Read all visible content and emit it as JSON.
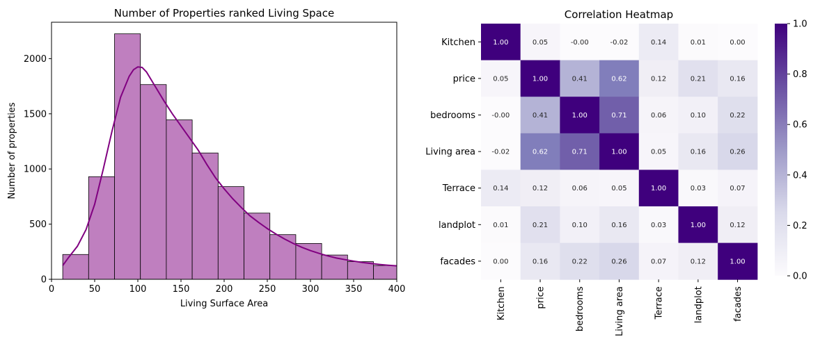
{
  "chart_data": [
    {
      "type": "histogram",
      "title": "Number of Properties ranked Living Space",
      "xlabel": "Living Surface Area",
      "ylabel": "Number of properties",
      "xlim": [
        0,
        400
      ],
      "ylim": [
        0,
        2330
      ],
      "xticks": [
        0,
        50,
        100,
        150,
        200,
        250,
        300,
        350,
        400
      ],
      "yticks": [
        0,
        500,
        1000,
        1500,
        2000
      ],
      "bar_color": "#bf7fbf",
      "edge_color": "#000000",
      "bins": [
        {
          "x0": 13,
          "x1": 43,
          "value": 225
        },
        {
          "x0": 43,
          "x1": 73,
          "value": 930
        },
        {
          "x0": 73,
          "x1": 103,
          "value": 2225
        },
        {
          "x0": 103,
          "x1": 133,
          "value": 1765
        },
        {
          "x0": 133,
          "x1": 163,
          "value": 1445
        },
        {
          "x0": 163,
          "x1": 193,
          "value": 1145
        },
        {
          "x0": 193,
          "x1": 223,
          "value": 840
        },
        {
          "x0": 223,
          "x1": 253,
          "value": 600
        },
        {
          "x0": 253,
          "x1": 283,
          "value": 405
        },
        {
          "x0": 283,
          "x1": 313,
          "value": 325
        },
        {
          "x0": 313,
          "x1": 343,
          "value": 220
        },
        {
          "x0": 343,
          "x1": 373,
          "value": 160
        },
        {
          "x0": 373,
          "x1": 403,
          "value": 125
        }
      ],
      "kde": {
        "color": "#800080",
        "x": [
          13,
          20,
          30,
          40,
          50,
          60,
          70,
          80,
          90,
          95,
          100,
          105,
          110,
          120,
          130,
          140,
          150,
          160,
          170,
          180,
          190,
          200,
          210,
          220,
          230,
          240,
          250,
          260,
          270,
          280,
          290,
          300,
          310,
          320,
          330,
          340,
          350,
          360,
          370,
          380,
          390,
          400
        ],
        "y": [
          125,
          200,
          300,
          450,
          680,
          1000,
          1340,
          1650,
          1840,
          1900,
          1925,
          1920,
          1880,
          1750,
          1620,
          1500,
          1390,
          1280,
          1170,
          1040,
          920,
          820,
          730,
          650,
          575,
          515,
          460,
          410,
          365,
          325,
          290,
          260,
          235,
          212,
          193,
          178,
          165,
          153,
          143,
          135,
          128,
          122
        ]
      }
    },
    {
      "type": "heatmap",
      "title": "Correlation Heatmap",
      "row_labels": [
        "Kitchen",
        "price",
        "bedrooms",
        "Living area",
        "Terrace",
        "landplot",
        "facades"
      ],
      "col_labels": [
        "Kitchen",
        "price",
        "bedrooms",
        "Living area",
        "Terrace",
        "landplot",
        "facades"
      ],
      "values": [
        [
          1.0,
          0.05,
          -0.0,
          -0.02,
          0.14,
          0.01,
          0.0
        ],
        [
          0.05,
          1.0,
          0.41,
          0.62,
          0.12,
          0.21,
          0.16
        ],
        [
          -0.0,
          0.41,
          1.0,
          0.71,
          0.06,
          0.1,
          0.22
        ],
        [
          -0.02,
          0.62,
          0.71,
          1.0,
          0.05,
          0.16,
          0.26
        ],
        [
          0.14,
          0.12,
          0.06,
          0.05,
          1.0,
          0.03,
          0.07
        ],
        [
          0.01,
          0.21,
          0.1,
          0.16,
          0.03,
          1.0,
          0.12
        ],
        [
          0.0,
          0.16,
          0.22,
          0.26,
          0.07,
          0.12,
          1.0
        ]
      ],
      "cell_text": [
        [
          "1.00",
          "0.05",
          "-0.00",
          "-0.02",
          "0.14",
          "0.01",
          "0.00"
        ],
        [
          "0.05",
          "1.00",
          "0.41",
          "0.62",
          "0.12",
          "0.21",
          "0.16"
        ],
        [
          "-0.00",
          "0.41",
          "1.00",
          "0.71",
          "0.06",
          "0.10",
          "0.22"
        ],
        [
          "-0.02",
          "0.62",
          "0.71",
          "1.00",
          "0.05",
          "0.16",
          "0.26"
        ],
        [
          "0.14",
          "0.12",
          "0.06",
          "0.05",
          "1.00",
          "0.03",
          "0.07"
        ],
        [
          "0.01",
          "0.21",
          "0.10",
          "0.16",
          "0.03",
          "1.00",
          "0.12"
        ],
        [
          "0.00",
          "0.16",
          "0.22",
          "0.26",
          "0.07",
          "0.12",
          "1.00"
        ]
      ],
      "colormap": "Purples",
      "vmin": 0.0,
      "vmax": 1.0,
      "colorbar_ticks": [
        "0.0",
        "0.2",
        "0.4",
        "0.6",
        "0.8",
        "1.0"
      ]
    }
  ]
}
